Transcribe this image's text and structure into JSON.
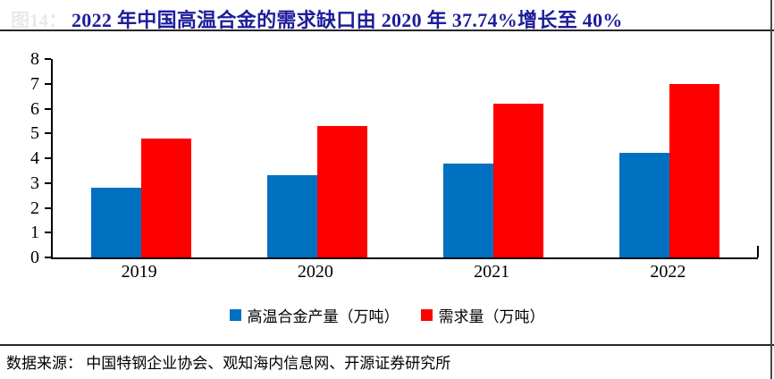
{
  "figure_label_ghost": "图14：",
  "title": "2022 年中国高温合金的需求缺口由 2020 年 37.74%增长至 40%",
  "title_color": "#1d1d9c",
  "footer": "数据来源： 中国特钢企业协会、观知海内信息网、开源证券研究所",
  "chart_data": {
    "type": "bar",
    "categories": [
      "2019",
      "2020",
      "2021",
      "2022"
    ],
    "series": [
      {
        "key": "production",
        "name": "高温合金产量（万吨）",
        "color": "#0070C0",
        "values": [
          2.8,
          3.3,
          3.8,
          4.2
        ]
      },
      {
        "key": "demand",
        "name": "需求量（万吨）",
        "color": "#FE0000",
        "values": [
          4.8,
          5.3,
          6.2,
          7.0
        ]
      }
    ],
    "ylim": [
      0,
      8
    ],
    "yticks": [
      0,
      1,
      2,
      3,
      4,
      5,
      6,
      7,
      8
    ],
    "grid": false,
    "legend_position": "bottom"
  }
}
